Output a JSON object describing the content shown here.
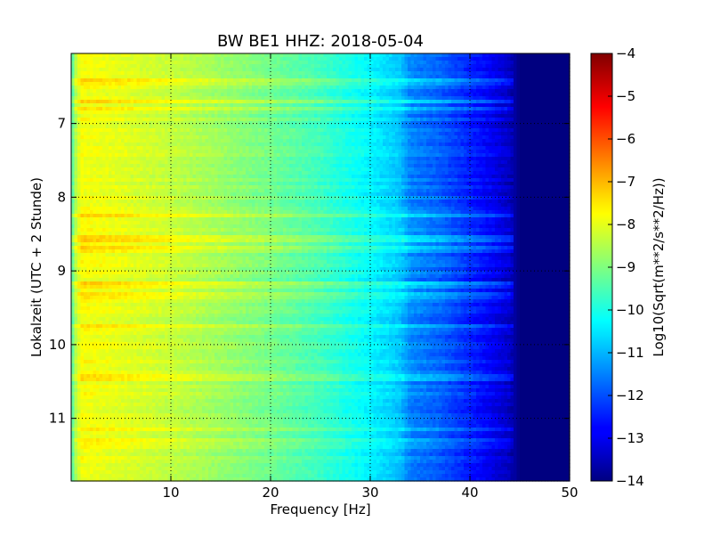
{
  "chart_data": {
    "type": "heatmap",
    "title": "BW BE1 HHZ: 2018-05-04",
    "xlabel": "Frequency [Hz]",
    "ylabel": "Lokalzeit (UTC + 2 Stunde)",
    "colorbar_label": "Log10(Sqrt(m**2/s**2/Hz))",
    "xlim": [
      0,
      50
    ],
    "ylim": [
      11.85,
      6.05
    ],
    "y_axis_inverted": true,
    "clim": [
      -14,
      -4
    ],
    "colormap": "jet",
    "grid": true,
    "x_ticks": [
      10,
      20,
      30,
      40,
      50
    ],
    "x_tick_labels": [
      "10",
      "20",
      "30",
      "40",
      "50"
    ],
    "y_ticks": [
      7,
      8,
      9,
      10,
      11
    ],
    "y_tick_labels": [
      "7",
      "8",
      "9",
      "10",
      "11"
    ],
    "colorbar_ticks": [
      -4,
      -5,
      -6,
      -7,
      -8,
      -9,
      -10,
      -11,
      -12,
      -13,
      -14
    ],
    "colorbar_tick_labels": [
      "−4",
      "−5",
      "−6",
      "−7",
      "−8",
      "−9",
      "−10",
      "−11",
      "−12",
      "−13",
      "−14"
    ],
    "profile_frequency_hz": [
      0,
      0.5,
      1,
      5,
      10,
      15,
      20,
      25,
      30,
      33,
      34,
      37,
      40,
      42,
      44,
      45,
      50
    ],
    "profile_log10_amplitude": [
      -9.6,
      -8.4,
      -7.8,
      -8.0,
      -8.3,
      -8.7,
      -9.1,
      -9.6,
      -10.3,
      -10.8,
      -11.4,
      -11.8,
      -12.4,
      -12.8,
      -13.3,
      -14,
      -14
    ],
    "strong_band_times_h": [
      6.45,
      6.7,
      6.8,
      8.25,
      8.55,
      8.72,
      9.2,
      9.35,
      9.75,
      10.45,
      11.15,
      11.3
    ]
  }
}
